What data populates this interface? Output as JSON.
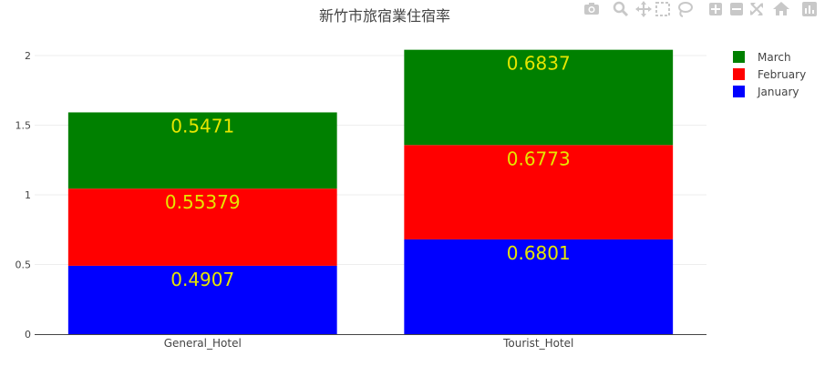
{
  "chart_data": {
    "type": "bar",
    "barmode": "stack",
    "title": "新竹市旅宿業住宿率",
    "categories": [
      "General_Hotel",
      "Tourist_Hotel"
    ],
    "series": [
      {
        "name": "January",
        "color": "#0000ff",
        "values": [
          0.4907,
          0.6801
        ],
        "labels": [
          "0.4907",
          "0.6801"
        ]
      },
      {
        "name": "February",
        "color": "#ff0000",
        "values": [
          0.55379,
          0.6773
        ],
        "labels": [
          "0.55379",
          "0.6773"
        ]
      },
      {
        "name": "March",
        "color": "#008000",
        "values": [
          0.5471,
          0.6837
        ],
        "labels": [
          "0.5471",
          "0.6837"
        ]
      }
    ],
    "yticks": [
      "0",
      "0.5",
      "1",
      "1.5",
      "2"
    ],
    "ylim": [
      0,
      2.15
    ],
    "grid": true,
    "legend_position": "top-right",
    "legend_order": [
      "March",
      "February",
      "January"
    ],
    "data_label_color": "#e6e600"
  },
  "modebar_icons": [
    "camera-icon",
    "zoom-icon",
    "pan-icon",
    "box-select-icon",
    "lasso-icon",
    "zoom-in-icon",
    "zoom-out-icon",
    "autoscale-icon",
    "reset-axes-icon",
    "plotly-logo-icon"
  ]
}
